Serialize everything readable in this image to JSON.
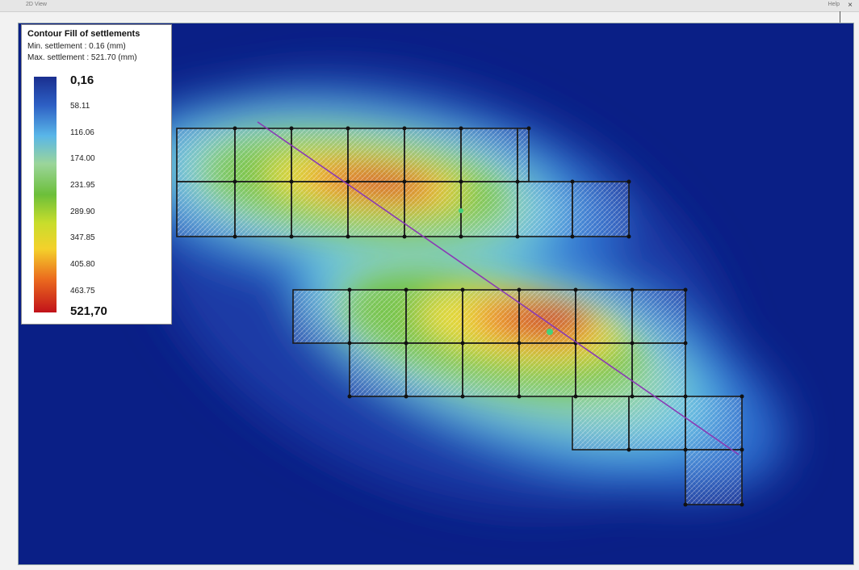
{
  "window": {
    "left_caption": "2D View",
    "right_caption": "Help",
    "close_glyph": "×"
  },
  "legend": {
    "title": "Contour Fill of settlements",
    "min_text": "Min. settlement : 0.16 (mm)",
    "max_text": "Max. settlement : 521.70 (mm)",
    "scale_labels": [
      "0,16",
      "58.11",
      "116.06",
      "174.00",
      "231.95",
      "289.90",
      "347.85",
      "405.80",
      "463.75",
      "521,70"
    ]
  },
  "colors": {
    "background": "#0a1f86",
    "low": "#1a2f8f",
    "mid": "#6cbf3a",
    "high": "#c1121a",
    "section_line": "#8a3ab5",
    "marker": "#44d17a"
  },
  "icons": {
    "close": "close-icon",
    "marker": "point-marker-icon"
  }
}
